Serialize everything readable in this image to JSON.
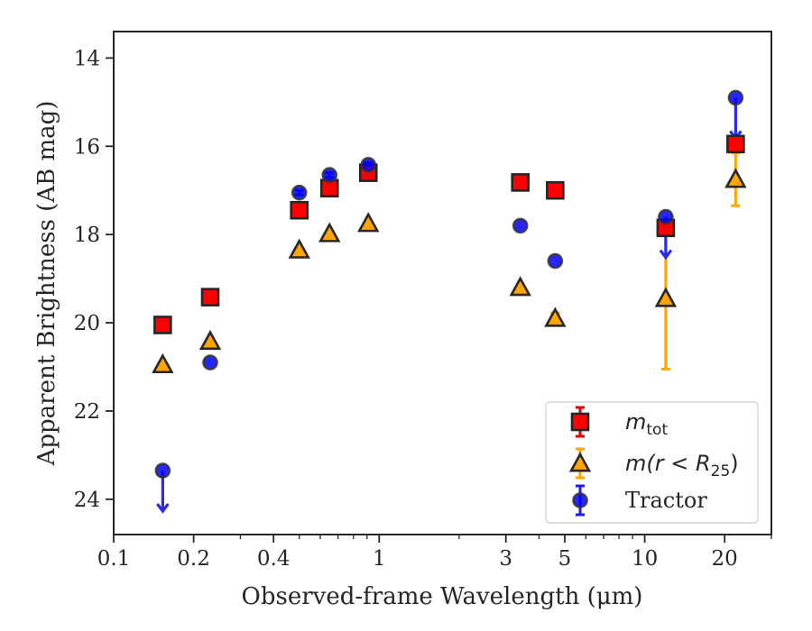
{
  "chart_data": {
    "type": "scatter",
    "title": "",
    "xlabel": "Observed-frame Wavelength (μm)",
    "ylabel": "Apparent Brightness (AB mag)",
    "xscale": "log",
    "xlim": [
      0.1,
      30
    ],
    "ylim": [
      24.8,
      13.4
    ],
    "y_inverted": true,
    "grid": false,
    "legend_position": "lower-right",
    "x_ticks": [
      {
        "value": 0.1,
        "label": "0.1"
      },
      {
        "value": 0.2,
        "label": "0.2"
      },
      {
        "value": 0.4,
        "label": "0.4"
      },
      {
        "value": 1,
        "label": "1"
      },
      {
        "value": 3,
        "label": "3"
      },
      {
        "value": 5,
        "label": "5"
      },
      {
        "value": 10,
        "label": "10"
      },
      {
        "value": 20,
        "label": "20"
      }
    ],
    "y_ticks": [
      {
        "value": 14,
        "label": "14"
      },
      {
        "value": 16,
        "label": "16"
      },
      {
        "value": 18,
        "label": "18"
      },
      {
        "value": 20,
        "label": "20"
      },
      {
        "value": 22,
        "label": "22"
      },
      {
        "value": 24,
        "label": "24"
      }
    ],
    "series": [
      {
        "name": "m_tot",
        "legend_main": "m",
        "legend_sub": "tot",
        "marker": "square",
        "color": "#ff0000",
        "edge_color": "#262626",
        "errorbar_color": "#e60000",
        "points": [
          {
            "x": 0.153,
            "y": 20.05
          },
          {
            "x": 0.231,
            "y": 19.42
          },
          {
            "x": 0.5,
            "y": 17.45
          },
          {
            "x": 0.65,
            "y": 16.95
          },
          {
            "x": 0.91,
            "y": 16.6
          },
          {
            "x": 3.4,
            "y": 16.82
          },
          {
            "x": 4.6,
            "y": 17.0
          },
          {
            "x": 12.0,
            "y": 17.85,
            "err": 0.05
          },
          {
            "x": 22.0,
            "y": 15.95
          }
        ]
      },
      {
        "name": "m(r<R_25)",
        "legend_main": "m(r < R",
        "legend_sub": "25",
        "legend_tail": ")",
        "marker": "triangle",
        "color": "#ffa500",
        "edge_color": "#262626",
        "errorbar_color": "#ffa500",
        "points": [
          {
            "x": 0.153,
            "y": 20.95
          },
          {
            "x": 0.231,
            "y": 20.42
          },
          {
            "x": 0.5,
            "y": 18.35
          },
          {
            "x": 0.65,
            "y": 17.98
          },
          {
            "x": 0.91,
            "y": 17.75
          },
          {
            "x": 3.4,
            "y": 19.2
          },
          {
            "x": 4.6,
            "y": 19.9,
            "err": 0.12
          },
          {
            "x": 12.0,
            "y": 19.45,
            "err": 1.6
          },
          {
            "x": 22.0,
            "y": 16.75,
            "err": 0.6
          }
        ]
      },
      {
        "name": "Tractor",
        "legend_main": "Tractor",
        "marker": "circle",
        "color": "#0000ff",
        "edge_color": "#333333",
        "errorbar_color": "#1a1aff",
        "points": [
          {
            "x": 0.153,
            "y": 23.35,
            "upper_limit": true
          },
          {
            "x": 0.231,
            "y": 20.9
          },
          {
            "x": 0.5,
            "y": 17.05,
            "err": 0.05
          },
          {
            "x": 0.65,
            "y": 16.65,
            "err": 0.05
          },
          {
            "x": 0.91,
            "y": 16.42,
            "err": 0.05
          },
          {
            "x": 3.4,
            "y": 17.8
          },
          {
            "x": 4.6,
            "y": 18.6
          },
          {
            "x": 12.0,
            "y": 17.6,
            "upper_limit": true
          },
          {
            "x": 22.0,
            "y": 14.9,
            "upper_limit": true
          }
        ]
      }
    ]
  }
}
